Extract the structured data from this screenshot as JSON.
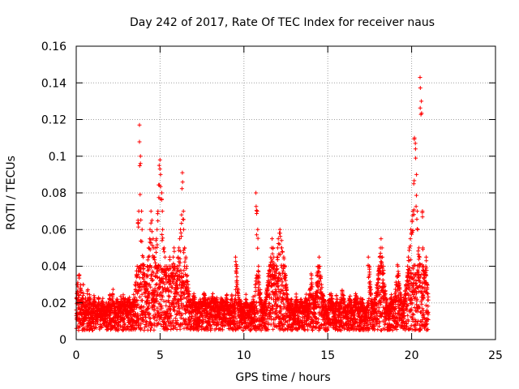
{
  "chart_data": {
    "type": "scatter",
    "title": "Day 242 of 2017, Rate Of TEC Index for receiver naus",
    "xlabel": "GPS time / hours",
    "ylabel": "ROTI / TECUs",
    "xlim": [
      0,
      25
    ],
    "ylim": [
      0,
      0.16
    ],
    "grid": true,
    "marker": "+",
    "color": "#ff0000",
    "x_ticks": [
      0,
      5,
      10,
      15,
      20,
      25
    ],
    "x_tick_labels": [
      "0",
      "5",
      "10",
      "15",
      "20",
      "25"
    ],
    "y_ticks": [
      0,
      0.02,
      0.04,
      0.06,
      0.08,
      0.1,
      0.12,
      0.14,
      0.16
    ],
    "y_tick_labels": [
      "0",
      "0.02",
      "0.04",
      "0.06",
      "0.08",
      "0.1",
      "0.12",
      "0.14",
      "0.16"
    ],
    "sampling_interval_hours": 0.05,
    "series": [
      {
        "name": "ROTI",
        "x_start": 0,
        "x_step": 0.05,
        "values": [
          0.025,
          0.03,
          0.022,
          0.035,
          0.02,
          0.028,
          0.018,
          0.022,
          0.03,
          0.02,
          0.015,
          0.02,
          0.018,
          0.025,
          0.016,
          0.02,
          0.022,
          0.018,
          0.015,
          0.02,
          0.018,
          0.022,
          0.02,
          0.016,
          0.015,
          0.018,
          0.02,
          0.017,
          0.016,
          0.015,
          0.018,
          0.02,
          0.018,
          0.016,
          0.015,
          0.02,
          0.018,
          0.016,
          0.018,
          0.02,
          0.022,
          0.02,
          0.018,
          0.025,
          0.02,
          0.018,
          0.016,
          0.02,
          0.022,
          0.018,
          0.015,
          0.018,
          0.02,
          0.022,
          0.018,
          0.02,
          0.022,
          0.018,
          0.02,
          0.016,
          0.018,
          0.02,
          0.022,
          0.02,
          0.018,
          0.016,
          0.018,
          0.02,
          0.022,
          0.02,
          0.03,
          0.035,
          0.04,
          0.065,
          0.07,
          0.117,
          0.1,
          0.07,
          0.06,
          0.045,
          0.04,
          0.035,
          0.03,
          0.035,
          0.04,
          0.045,
          0.05,
          0.055,
          0.06,
          0.07,
          0.065,
          0.055,
          0.05,
          0.045,
          0.05,
          0.055,
          0.06,
          0.07,
          0.095,
          0.098,
          0.09,
          0.08,
          0.07,
          0.06,
          0.05,
          0.045,
          0.04,
          0.035,
          0.04,
          0.035,
          0.04,
          0.045,
          0.04,
          0.035,
          0.04,
          0.045,
          0.05,
          0.04,
          0.035,
          0.03,
          0.04,
          0.045,
          0.05,
          0.055,
          0.06,
          0.068,
          0.091,
          0.07,
          0.06,
          0.05,
          0.045,
          0.04,
          0.035,
          0.03,
          0.025,
          0.022,
          0.02,
          0.018,
          0.02,
          0.022,
          0.025,
          0.022,
          0.02,
          0.018,
          0.016,
          0.018,
          0.02,
          0.022,
          0.02,
          0.018,
          0.02,
          0.022,
          0.025,
          0.022,
          0.02,
          0.018,
          0.02,
          0.022,
          0.02,
          0.018,
          0.02,
          0.022,
          0.025,
          0.022,
          0.02,
          0.018,
          0.02,
          0.022,
          0.02,
          0.018,
          0.016,
          0.018,
          0.02,
          0.022,
          0.02,
          0.018,
          0.016,
          0.018,
          0.02,
          0.022,
          0.02,
          0.018,
          0.016,
          0.018,
          0.02,
          0.022,
          0.02,
          0.018,
          0.02,
          0.022,
          0.045,
          0.04,
          0.03,
          0.025,
          0.022,
          0.02,
          0.018,
          0.016,
          0.015,
          0.016,
          0.018,
          0.02,
          0.022,
          0.02,
          0.018,
          0.016,
          0.015,
          0.016,
          0.018,
          0.02,
          0.022,
          0.02,
          0.018,
          0.03,
          0.08,
          0.07,
          0.06,
          0.04,
          0.03,
          0.025,
          0.02,
          0.018,
          0.016,
          0.018,
          0.02,
          0.022,
          0.025,
          0.028,
          0.03,
          0.035,
          0.04,
          0.045,
          0.05,
          0.055,
          0.05,
          0.045,
          0.04,
          0.035,
          0.04,
          0.045,
          0.05,
          0.055,
          0.06,
          0.058,
          0.054,
          0.05,
          0.048,
          0.045,
          0.04,
          0.035,
          0.03,
          0.025,
          0.022,
          0.02,
          0.018,
          0.02,
          0.022,
          0.018,
          0.016,
          0.015,
          0.018,
          0.02,
          0.022,
          0.02,
          0.018,
          0.016,
          0.018,
          0.02,
          0.022,
          0.02,
          0.018,
          0.016,
          0.018,
          0.02,
          0.022,
          0.02,
          0.018,
          0.02,
          0.025,
          0.03,
          0.035,
          0.03,
          0.025,
          0.022,
          0.02,
          0.025,
          0.03,
          0.035,
          0.04,
          0.045,
          0.04,
          0.035,
          0.03,
          0.025,
          0.022,
          0.02,
          0.018,
          0.016,
          0.015,
          0.016,
          0.018,
          0.02,
          0.022,
          0.025,
          0.022,
          0.02,
          0.018,
          0.016,
          0.018,
          0.02,
          0.022,
          0.02,
          0.018,
          0.016,
          0.018,
          0.02,
          0.022,
          0.025,
          0.022,
          0.02,
          0.018,
          0.016,
          0.015,
          0.016,
          0.018,
          0.02,
          0.022,
          0.02,
          0.018,
          0.016,
          0.018,
          0.02,
          0.022,
          0.025,
          0.022,
          0.02,
          0.018,
          0.016,
          0.018,
          0.02,
          0.022,
          0.02,
          0.018,
          0.016,
          0.015,
          0.016,
          0.018,
          0.02,
          0.045,
          0.04,
          0.03,
          0.025,
          0.022,
          0.02,
          0.018,
          0.02,
          0.022,
          0.025,
          0.03,
          0.035,
          0.04,
          0.045,
          0.05,
          0.055,
          0.05,
          0.045,
          0.04,
          0.03,
          0.025,
          0.022,
          0.02,
          0.018,
          0.016,
          0.018,
          0.02,
          0.022,
          0.02,
          0.018,
          0.02,
          0.022,
          0.025,
          0.03,
          0.035,
          0.04,
          0.035,
          0.03,
          0.025,
          0.022,
          0.02,
          0.018,
          0.02,
          0.022,
          0.025,
          0.03,
          0.035,
          0.04,
          0.045,
          0.05,
          0.055,
          0.06,
          0.065,
          0.07,
          0.085,
          0.11,
          0.107,
          0.09,
          0.07,
          0.06,
          0.05,
          0.045,
          0.143,
          0.13,
          0.07,
          0.05,
          0.04,
          0.035,
          0.04,
          0.045,
          0.03,
          0.025
        ]
      }
    ]
  }
}
